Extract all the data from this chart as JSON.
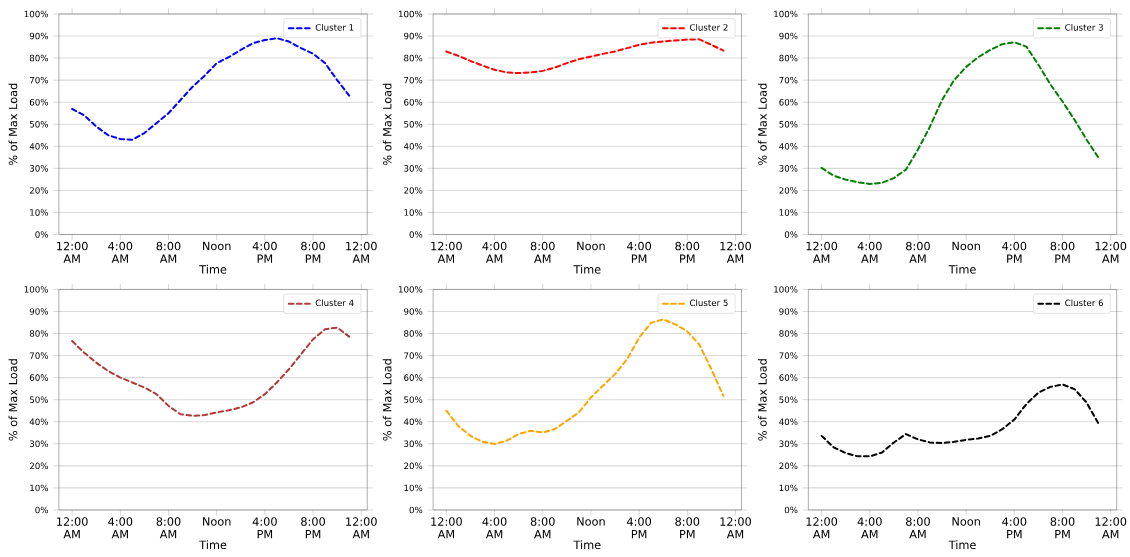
{
  "chart_data": [
    {
      "type": "line",
      "x": [
        0,
        1,
        2,
        3,
        4,
        5,
        6,
        7,
        8,
        9,
        10,
        11,
        12,
        13,
        14,
        15,
        16,
        17,
        18,
        19,
        20,
        21,
        22,
        23
      ],
      "xlabel": "Time",
      "ylabel": "% of Max Load",
      "xlim": [
        -1.1,
        24.5
      ],
      "ylim": [
        0,
        100
      ],
      "grid": "y",
      "legend": "top right",
      "line_style": "dashed",
      "xticks": [
        {
          "value": 0,
          "label": "12:00 AM"
        },
        {
          "value": 4,
          "label": "4:00 AM"
        },
        {
          "value": 8,
          "label": "8:00 AM"
        },
        {
          "value": 12,
          "label": "Noon"
        },
        {
          "value": 16,
          "label": "4:00 PM"
        },
        {
          "value": 20,
          "label": "8:00 PM"
        },
        {
          "value": 24,
          "label": "12:00 AM"
        }
      ],
      "yticks": [
        {
          "value": 0,
          "label": "0%"
        },
        {
          "value": 10,
          "label": "10%"
        },
        {
          "value": 20,
          "label": "20%"
        },
        {
          "value": 30,
          "label": "30%"
        },
        {
          "value": 40,
          "label": "40%"
        },
        {
          "value": 50,
          "label": "50%"
        },
        {
          "value": 60,
          "label": "60%"
        },
        {
          "value": 70,
          "label": "70%"
        },
        {
          "value": 80,
          "label": "80%"
        },
        {
          "value": 90,
          "label": "90%"
        },
        {
          "value": 100,
          "label": "100%"
        }
      ],
      "series": [
        {
          "name": "Cluster 1",
          "color": "#0000ff",
          "values": [
            57,
            54,
            49,
            45,
            43.3,
            43,
            46,
            50.5,
            55,
            61,
            67,
            72,
            77.7,
            80.4,
            83.7,
            86.7,
            88.2,
            89,
            87.5,
            84.5,
            82,
            77.7,
            70,
            63
          ]
        }
      ]
    },
    {
      "type": "line",
      "x": [
        0,
        1,
        2,
        3,
        4,
        5,
        6,
        7,
        8,
        9,
        10,
        11,
        12,
        13,
        14,
        15,
        16,
        17,
        18,
        19,
        20,
        21,
        22,
        23
      ],
      "xlabel": "Time",
      "ylabel": "% of Max Load",
      "xlim": [
        -1.1,
        24.5
      ],
      "ylim": [
        0,
        100
      ],
      "grid": "y",
      "legend": "top right",
      "line_style": "dashed",
      "xticks": [
        {
          "value": 0,
          "label": "12:00 AM"
        },
        {
          "value": 4,
          "label": "4:00 AM"
        },
        {
          "value": 8,
          "label": "8:00 AM"
        },
        {
          "value": 12,
          "label": "Noon"
        },
        {
          "value": 16,
          "label": "4:00 PM"
        },
        {
          "value": 20,
          "label": "8:00 PM"
        },
        {
          "value": 24,
          "label": "12:00 AM"
        }
      ],
      "yticks": [
        {
          "value": 0,
          "label": "0%"
        },
        {
          "value": 10,
          "label": "10%"
        },
        {
          "value": 20,
          "label": "20%"
        },
        {
          "value": 30,
          "label": "30%"
        },
        {
          "value": 40,
          "label": "40%"
        },
        {
          "value": 50,
          "label": "50%"
        },
        {
          "value": 60,
          "label": "60%"
        },
        {
          "value": 70,
          "label": "70%"
        },
        {
          "value": 80,
          "label": "80%"
        },
        {
          "value": 90,
          "label": "90%"
        },
        {
          "value": 100,
          "label": "100%"
        }
      ],
      "series": [
        {
          "name": "Cluster 2",
          "color": "#ff0000",
          "values": [
            83,
            81,
            78.7,
            76.6,
            74.7,
            73.5,
            73.2,
            73.5,
            74.2,
            75.7,
            77.7,
            79.5,
            80.7,
            81.9,
            83,
            84.5,
            86,
            87,
            87.5,
            88,
            88.4,
            88.5,
            86,
            83.4
          ]
        }
      ]
    },
    {
      "type": "line",
      "x": [
        0,
        1,
        2,
        3,
        4,
        5,
        6,
        7,
        8,
        9,
        10,
        11,
        12,
        13,
        14,
        15,
        16,
        17,
        18,
        19,
        20,
        21,
        22,
        23
      ],
      "xlabel": "Time",
      "ylabel": "% of Max Load",
      "xlim": [
        -1.1,
        24.5
      ],
      "ylim": [
        0,
        100
      ],
      "grid": "y",
      "legend": "top right",
      "line_style": "dashed",
      "xticks": [
        {
          "value": 0,
          "label": "12:00 AM"
        },
        {
          "value": 4,
          "label": "4:00 AM"
        },
        {
          "value": 8,
          "label": "8:00 AM"
        },
        {
          "value": 12,
          "label": "Noon"
        },
        {
          "value": 16,
          "label": "4:00 PM"
        },
        {
          "value": 20,
          "label": "8:00 PM"
        },
        {
          "value": 24,
          "label": "12:00 AM"
        }
      ],
      "yticks": [
        {
          "value": 0,
          "label": "0%"
        },
        {
          "value": 10,
          "label": "10%"
        },
        {
          "value": 20,
          "label": "20%"
        },
        {
          "value": 30,
          "label": "30%"
        },
        {
          "value": 40,
          "label": "40%"
        },
        {
          "value": 50,
          "label": "50%"
        },
        {
          "value": 60,
          "label": "60%"
        },
        {
          "value": 70,
          "label": "70%"
        },
        {
          "value": 80,
          "label": "80%"
        },
        {
          "value": 90,
          "label": "90%"
        },
        {
          "value": 100,
          "label": "100%"
        }
      ],
      "series": [
        {
          "name": "Cluster 3",
          "color": "#008000",
          "values": [
            30.2,
            26.7,
            24.9,
            23.7,
            22.9,
            23.4,
            25.6,
            29.4,
            38.5,
            49,
            61,
            70,
            76,
            80.4,
            83.7,
            86.3,
            87.2,
            85.2,
            77,
            68,
            60.3,
            52,
            43,
            34.7
          ]
        }
      ]
    },
    {
      "type": "line",
      "x": [
        0,
        1,
        2,
        3,
        4,
        5,
        6,
        7,
        8,
        9,
        10,
        11,
        12,
        13,
        14,
        15,
        16,
        17,
        18,
        19,
        20,
        21,
        22,
        23
      ],
      "xlabel": "Time",
      "ylabel": "% of Max Load",
      "xlim": [
        -1.1,
        24.5
      ],
      "ylim": [
        0,
        100
      ],
      "grid": "y",
      "legend": "top right",
      "line_style": "dashed",
      "xticks": [
        {
          "value": 0,
          "label": "12:00 AM"
        },
        {
          "value": 4,
          "label": "4:00 AM"
        },
        {
          "value": 8,
          "label": "8:00 AM"
        },
        {
          "value": 12,
          "label": "Noon"
        },
        {
          "value": 16,
          "label": "4:00 PM"
        },
        {
          "value": 20,
          "label": "8:00 PM"
        },
        {
          "value": 24,
          "label": "12:00 AM"
        }
      ],
      "yticks": [
        {
          "value": 0,
          "label": "0%"
        },
        {
          "value": 10,
          "label": "10%"
        },
        {
          "value": 20,
          "label": "20%"
        },
        {
          "value": 30,
          "label": "30%"
        },
        {
          "value": 40,
          "label": "40%"
        },
        {
          "value": 50,
          "label": "50%"
        },
        {
          "value": 60,
          "label": "60%"
        },
        {
          "value": 70,
          "label": "70%"
        },
        {
          "value": 80,
          "label": "80%"
        },
        {
          "value": 90,
          "label": "90%"
        },
        {
          "value": 100,
          "label": "100%"
        }
      ],
      "series": [
        {
          "name": "Cluster 4",
          "color": "#b03a3a",
          "values": [
            76.6,
            71.3,
            66.8,
            63,
            60,
            57.8,
            55.5,
            52.5,
            47.2,
            43.4,
            42.7,
            43,
            44.2,
            45.2,
            46.5,
            48.7,
            52.5,
            57.8,
            63.8,
            70.6,
            77.4,
            81.9,
            82.7,
            78.6
          ]
        }
      ]
    },
    {
      "type": "line",
      "x": [
        0,
        1,
        2,
        3,
        4,
        5,
        6,
        7,
        8,
        9,
        10,
        11,
        12,
        13,
        14,
        15,
        16,
        17,
        18,
        19,
        20,
        21,
        22,
        23
      ],
      "xlabel": "Time",
      "ylabel": "% of Max Load",
      "xlim": [
        -1.1,
        24.5
      ],
      "ylim": [
        0,
        100
      ],
      "grid": "y",
      "legend": "top right",
      "line_style": "dashed",
      "xticks": [
        {
          "value": 0,
          "label": "12:00 AM"
        },
        {
          "value": 4,
          "label": "4:00 AM"
        },
        {
          "value": 8,
          "label": "8:00 AM"
        },
        {
          "value": 12,
          "label": "Noon"
        },
        {
          "value": 16,
          "label": "4:00 PM"
        },
        {
          "value": 20,
          "label": "8:00 PM"
        },
        {
          "value": 24,
          "label": "12:00 AM"
        }
      ],
      "yticks": [
        {
          "value": 0,
          "label": "0%"
        },
        {
          "value": 10,
          "label": "10%"
        },
        {
          "value": 20,
          "label": "20%"
        },
        {
          "value": 30,
          "label": "30%"
        },
        {
          "value": 40,
          "label": "40%"
        },
        {
          "value": 50,
          "label": "50%"
        },
        {
          "value": 60,
          "label": "60%"
        },
        {
          "value": 70,
          "label": "70%"
        },
        {
          "value": 80,
          "label": "80%"
        },
        {
          "value": 90,
          "label": "90%"
        },
        {
          "value": 100,
          "label": "100%"
        }
      ],
      "series": [
        {
          "name": "Cluster 5",
          "color": "#ffa500",
          "values": [
            45,
            38,
            33.6,
            30.9,
            29.9,
            31.4,
            34.4,
            35.9,
            35.1,
            36.7,
            40.4,
            44.2,
            51,
            56.3,
            61.6,
            68.3,
            78.1,
            84.9,
            86.4,
            84.2,
            81,
            75,
            63.8,
            51.7
          ]
        }
      ]
    },
    {
      "type": "line",
      "x": [
        0,
        1,
        2,
        3,
        4,
        5,
        6,
        7,
        8,
        9,
        10,
        11,
        12,
        13,
        14,
        15,
        16,
        17,
        18,
        19,
        20,
        21,
        22,
        23
      ],
      "xlabel": "Time",
      "ylabel": "% of Max Load",
      "xlim": [
        -1.1,
        24.5
      ],
      "ylim": [
        0,
        100
      ],
      "grid": "y",
      "legend": "top right",
      "line_style": "dashed",
      "xticks": [
        {
          "value": 0,
          "label": "12:00 AM"
        },
        {
          "value": 4,
          "label": "4:00 AM"
        },
        {
          "value": 8,
          "label": "8:00 AM"
        },
        {
          "value": 12,
          "label": "Noon"
        },
        {
          "value": 16,
          "label": "4:00 PM"
        },
        {
          "value": 20,
          "label": "8:00 PM"
        },
        {
          "value": 24,
          "label": "12:00 AM"
        }
      ],
      "yticks": [
        {
          "value": 0,
          "label": "0%"
        },
        {
          "value": 10,
          "label": "10%"
        },
        {
          "value": 20,
          "label": "20%"
        },
        {
          "value": 30,
          "label": "30%"
        },
        {
          "value": 40,
          "label": "40%"
        },
        {
          "value": 50,
          "label": "50%"
        },
        {
          "value": 60,
          "label": "60%"
        },
        {
          "value": 70,
          "label": "70%"
        },
        {
          "value": 80,
          "label": "80%"
        },
        {
          "value": 90,
          "label": "90%"
        },
        {
          "value": 100,
          "label": "100%"
        }
      ],
      "series": [
        {
          "name": "Cluster 6",
          "color": "#000000",
          "values": [
            33.6,
            28.4,
            25.8,
            24.3,
            24.3,
            26,
            30.6,
            34.4,
            32,
            30.6,
            30.3,
            30.9,
            31.8,
            32.4,
            33.6,
            36.6,
            41,
            48,
            53.2,
            55.8,
            56.9,
            54.8,
            48.7,
            39
          ]
        }
      ]
    }
  ]
}
